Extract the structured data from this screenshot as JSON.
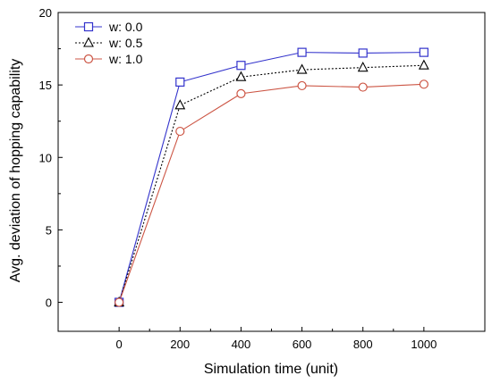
{
  "chart_data": {
    "type": "line",
    "xlabel": "Simulation time (unit)",
    "ylabel": "Avg. deviation of hopping capability",
    "x": [
      0,
      200,
      400,
      600,
      800,
      1000
    ],
    "xlim": [
      -200,
      1200
    ],
    "ylim": [
      -2,
      20
    ],
    "xticks": [
      0,
      200,
      400,
      600,
      800,
      1000
    ],
    "yticks": [
      0,
      5,
      10,
      15,
      20
    ],
    "legend_position": "top-left",
    "grid": false,
    "series": [
      {
        "name": "w: 0.0",
        "values": [
          0,
          15.2,
          16.35,
          17.25,
          17.2,
          17.25
        ],
        "color": "#3333cc",
        "marker": "square",
        "dash": "solid"
      },
      {
        "name": "w: 0.5",
        "values": [
          0,
          13.6,
          15.55,
          16.05,
          16.2,
          16.35
        ],
        "color": "#000000",
        "marker": "triangle",
        "dash": "dotted"
      },
      {
        "name": "w: 1.0",
        "values": [
          0,
          11.8,
          14.4,
          14.95,
          14.85,
          15.05
        ],
        "color": "#cc5544",
        "marker": "circle",
        "dash": "solid"
      }
    ]
  }
}
